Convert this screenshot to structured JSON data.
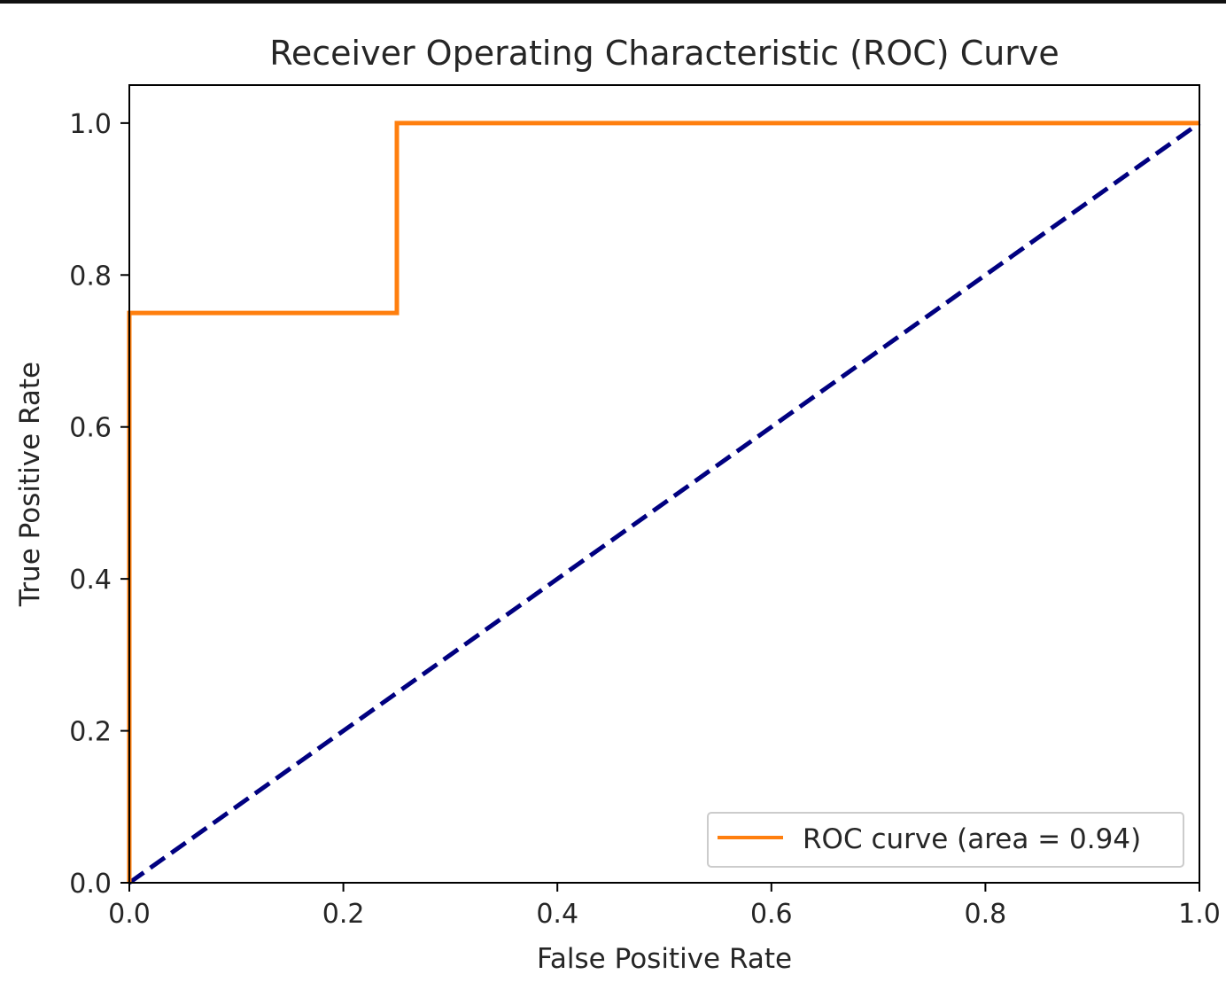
{
  "chart_data": {
    "type": "line",
    "title": "Receiver Operating Characteristic (ROC) Curve",
    "xlabel": "False Positive Rate",
    "ylabel": "True Positive Rate",
    "xlim": [
      0.0,
      1.0
    ],
    "ylim": [
      0.0,
      1.05
    ],
    "xticks": [
      "0.0",
      "0.2",
      "0.4",
      "0.6",
      "0.8",
      "1.0"
    ],
    "yticks": [
      "0.0",
      "0.2",
      "0.4",
      "0.6",
      "0.8",
      "1.0"
    ],
    "xtick_values": [
      0.0,
      0.2,
      0.4,
      0.6,
      0.8,
      1.0
    ],
    "ytick_values": [
      0.0,
      0.2,
      0.4,
      0.6,
      0.8,
      1.0
    ],
    "grid": false,
    "legend_position": "lower right",
    "series": [
      {
        "name": "ROC curve (area = 0.94)",
        "color": "#ff7f0e",
        "style": "solid",
        "x": [
          0.0,
          0.0,
          0.25,
          0.25,
          1.0
        ],
        "y": [
          0.0,
          0.75,
          0.75,
          1.0,
          1.0
        ]
      },
      {
        "color": "#000080",
        "style": "dashed",
        "x": [
          0.0,
          1.0
        ],
        "y": [
          0.0,
          1.0
        ]
      }
    ]
  }
}
